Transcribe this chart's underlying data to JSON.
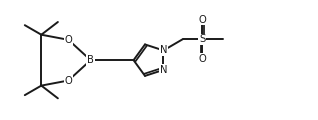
{
  "bg_color": "#ffffff",
  "line_color": "#1a1a1a",
  "line_width": 1.4,
  "font_size": 7.2,
  "fig_width": 3.18,
  "fig_height": 1.2,
  "dpi": 100,
  "xlim": [
    0,
    10
  ],
  "ylim": [
    0,
    3.77
  ]
}
